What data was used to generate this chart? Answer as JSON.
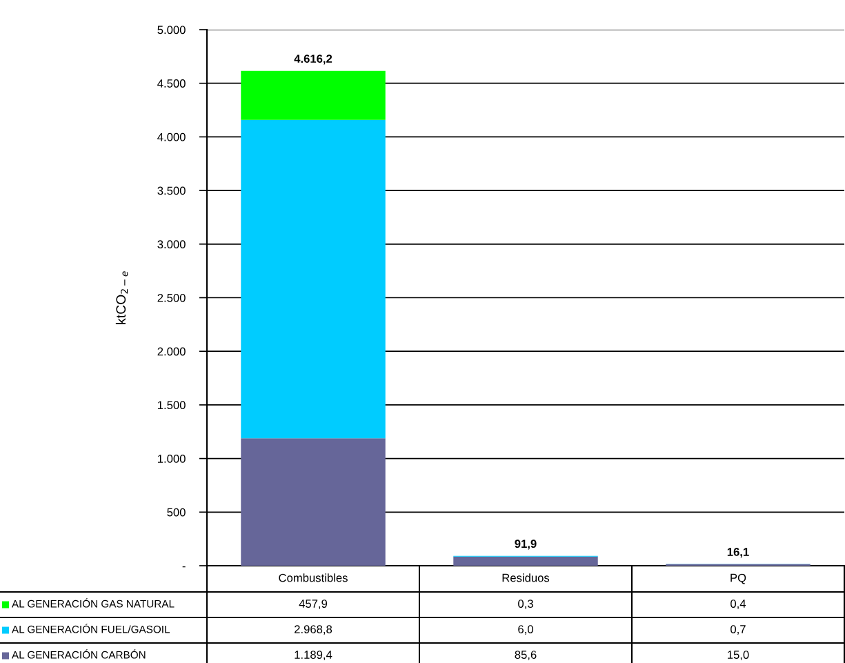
{
  "chart_data": {
    "type": "bar",
    "stacked": true,
    "ylabel": "ktCO$_{2−e}$",
    "categories": [
      "Combustibles",
      "Residuos",
      "PQ"
    ],
    "series": [
      {
        "name": "AL GENERACIÓN CARBÓN",
        "color": "#666699",
        "values": [
          1189.4,
          85.6,
          15.0
        ],
        "value_labels": [
          "1.189,4",
          "85,6",
          "15,0"
        ]
      },
      {
        "name": "AL GENERACIÓN FUEL/GASOIL",
        "color": "#00ccff",
        "values": [
          2968.8,
          6.0,
          0.7
        ],
        "value_labels": [
          "2.968,8",
          "6,0",
          "0,7"
        ]
      },
      {
        "name": "AL GENERACIÓN GAS NATURAL",
        "color": "#00ff00",
        "values": [
          457.9,
          0.3,
          0.4
        ],
        "value_labels": [
          "457,9",
          "0,3",
          "0,4"
        ]
      }
    ],
    "totals": [
      "4.616,2",
      "91,9",
      "16,1"
    ],
    "ylim": [
      0,
      5000
    ],
    "yticks": [
      {
        "value": 0,
        "label": "-"
      },
      {
        "value": 500,
        "label": "500"
      },
      {
        "value": 1000,
        "label": "1.000"
      },
      {
        "value": 1500,
        "label": "1.500"
      },
      {
        "value": 2000,
        "label": "2.000"
      },
      {
        "value": 2500,
        "label": "2.500"
      },
      {
        "value": 3000,
        "label": "3.000"
      },
      {
        "value": 3500,
        "label": "3.500"
      },
      {
        "value": 4000,
        "label": "4.000"
      },
      {
        "value": 4500,
        "label": "4.500"
      },
      {
        "value": 5000,
        "label": "5.000"
      }
    ],
    "grid": "y",
    "legend": "bottom left"
  }
}
